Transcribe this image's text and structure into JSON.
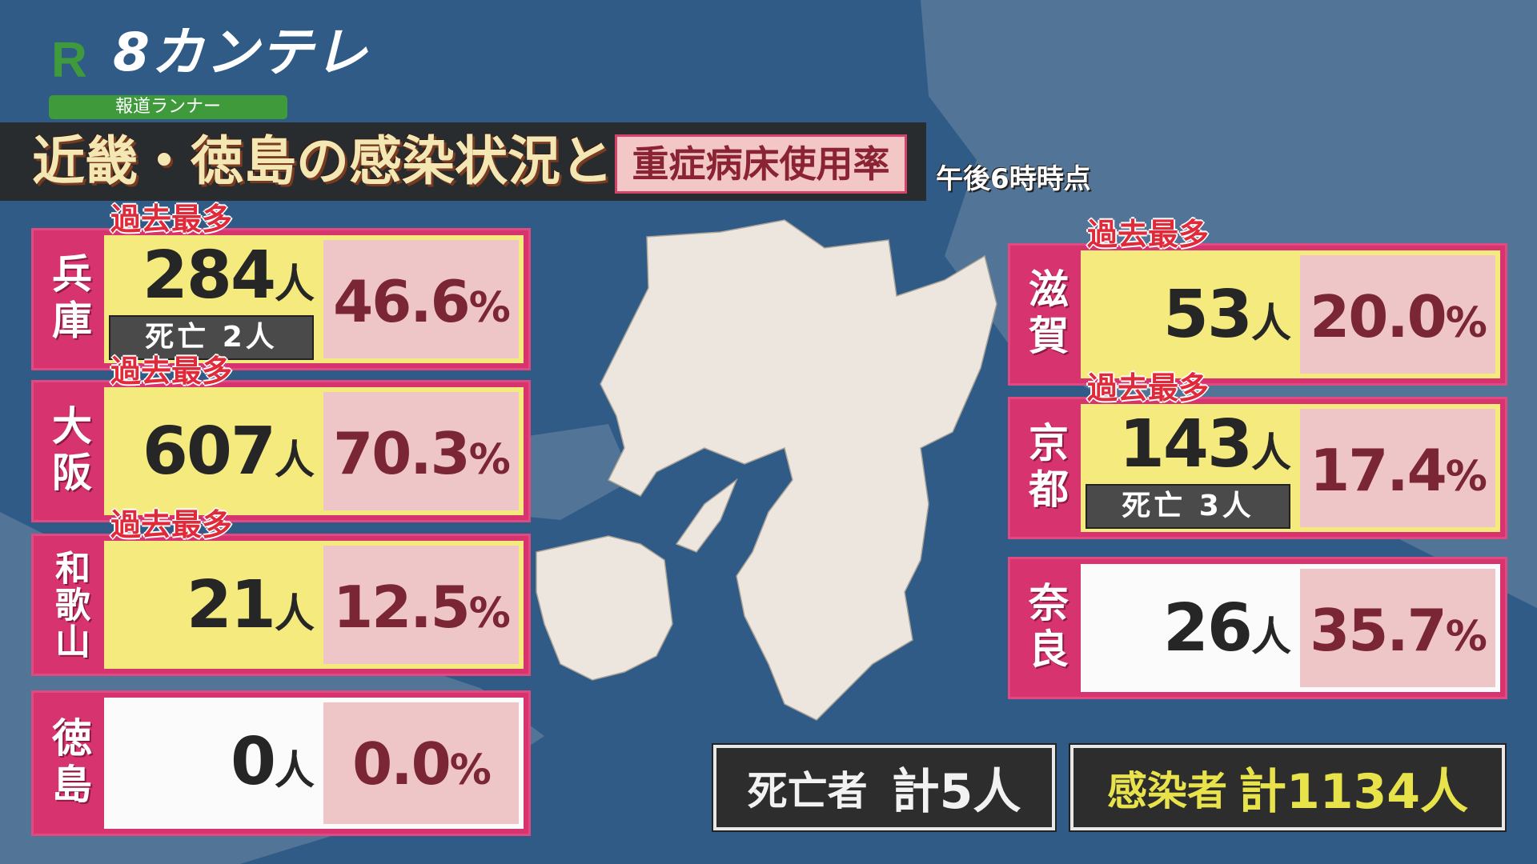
{
  "header": {
    "logo_r": "R",
    "logo_brand": "8カンテレ",
    "program": "報道ランナー",
    "title": "近畿・徳島の感染状況と",
    "subtitle": "重症病床使用率",
    "as_of": "午後6時時点"
  },
  "record_label": "過去最多",
  "unit": "人",
  "pct": "%",
  "prefectures": [
    {
      "name": "兵庫",
      "count": "284",
      "record": true,
      "deaths": "死亡 2人",
      "rate": "46.6"
    },
    {
      "name": "大阪",
      "count": "607",
      "record": true,
      "rate": "70.3"
    },
    {
      "name": "和歌山",
      "count": "21",
      "record": true,
      "rate": "12.5"
    },
    {
      "name": "徳島",
      "count": "0",
      "record": false,
      "rate": "0.0"
    },
    {
      "name": "滋賀",
      "count": "53",
      "record": true,
      "rate": "20.0"
    },
    {
      "name": "京都",
      "count": "143",
      "record": true,
      "deaths": "死亡 3人",
      "rate": "17.4"
    },
    {
      "name": "奈良",
      "count": "26",
      "record": false,
      "rate": "35.7"
    }
  ],
  "totals": {
    "deaths_label": "死亡者",
    "deaths_value": "計5人",
    "infected_label": "感染者",
    "infected_value": "計1134人"
  },
  "colors": {
    "panel_border": "#d6336f",
    "record_bg": "#f4ea7e",
    "rate_bg": "#efc6c8",
    "background": "#2f5b86"
  }
}
